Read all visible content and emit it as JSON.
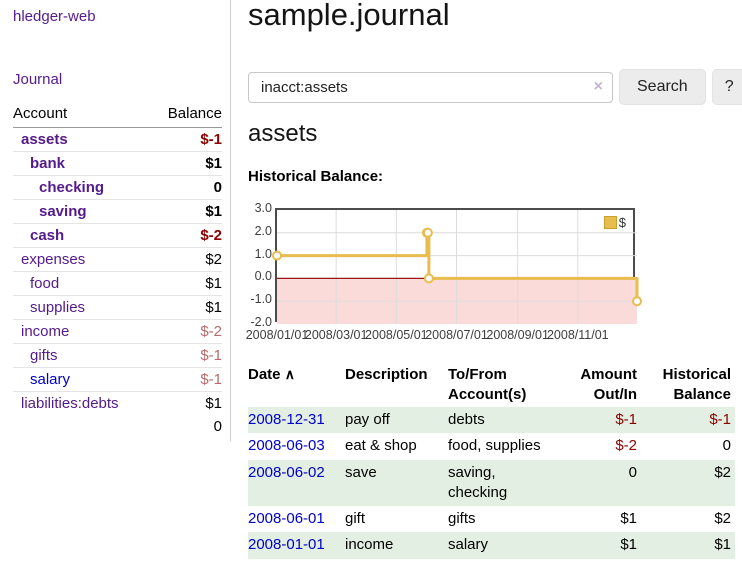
{
  "app": {
    "title": "hledger-web"
  },
  "sidebar": {
    "nav_journal": "Journal",
    "accounts": {
      "col_account": "Account",
      "col_balance": "Balance",
      "rows": [
        {
          "name": "assets",
          "balance": "$-1",
          "indent": 0,
          "bold": true,
          "neg": "strong",
          "link": "visited"
        },
        {
          "name": "bank",
          "balance": "$1",
          "indent": 1,
          "bold": true,
          "neg": null,
          "link": "visited"
        },
        {
          "name": "checking",
          "balance": "0",
          "indent": 2,
          "bold": true,
          "neg": null,
          "link": "visited"
        },
        {
          "name": "saving",
          "balance": "$1",
          "indent": 2,
          "bold": true,
          "neg": null,
          "link": "visited"
        },
        {
          "name": "cash",
          "balance": "$-2",
          "indent": 1,
          "bold": true,
          "neg": "strong",
          "link": "visited"
        },
        {
          "name": "expenses",
          "balance": "$2",
          "indent": 0,
          "bold": false,
          "neg": null,
          "link": "visited"
        },
        {
          "name": "food",
          "balance": "$1",
          "indent": 1,
          "bold": false,
          "neg": null,
          "link": "visited"
        },
        {
          "name": "supplies",
          "balance": "$1",
          "indent": 1,
          "bold": false,
          "neg": null,
          "link": "visited"
        },
        {
          "name": "income",
          "balance": "$-2",
          "indent": 0,
          "bold": false,
          "neg": "dim",
          "link": "visited"
        },
        {
          "name": "gifts",
          "balance": "$-1",
          "indent": 1,
          "bold": false,
          "neg": "dim",
          "link": "visited"
        },
        {
          "name": "salary",
          "balance": "$-1",
          "indent": 1,
          "bold": false,
          "neg": "dim",
          "link": "unvisited"
        },
        {
          "name": "liabilities:debts",
          "balance": "$1",
          "indent": 0,
          "bold": false,
          "neg": null,
          "link": "visited"
        }
      ],
      "total": "0"
    }
  },
  "main": {
    "title": "sample.journal",
    "search": {
      "value": "inacct:assets",
      "clear_icon": "×",
      "search_button": "Search",
      "help_button": "?"
    },
    "account_heading": "assets",
    "chart_title": "Historical Balance:"
  },
  "register": {
    "columns": {
      "date": "Date",
      "sort_icon": "∧",
      "description": "Description",
      "accounts": "To/From\nAccount(s)",
      "amount": "Amount\nOut/In",
      "balance": "Historical\nBalance"
    },
    "rows": [
      {
        "date": "2008-12-31",
        "description": "pay off",
        "accounts": "debts",
        "amount": "$-1",
        "balance": "$-1"
      },
      {
        "date": "2008-06-03",
        "description": "eat & shop",
        "accounts": "food, supplies",
        "amount": "$-2",
        "balance": "0"
      },
      {
        "date": "2008-06-02",
        "description": "save",
        "accounts": "saving, checking",
        "amount": "0",
        "balance": "$2"
      },
      {
        "date": "2008-06-01",
        "description": "gift",
        "accounts": "gifts",
        "amount": "$1",
        "balance": "$2"
      },
      {
        "date": "2008-01-01",
        "description": "income",
        "accounts": "salary",
        "amount": "$1",
        "balance": "$1"
      }
    ]
  },
  "chart_data": {
    "type": "line",
    "step": true,
    "title": "Historical Balance",
    "legend": [
      {
        "label": "$",
        "color": "#e8bd4e",
        "position": "top-right"
      }
    ],
    "series": [
      {
        "name": "$",
        "color": "#e8bd4e",
        "points": [
          [
            "2008-01-01",
            1
          ],
          [
            "2008-06-01",
            2
          ],
          [
            "2008-06-02",
            2
          ],
          [
            "2008-06-03",
            0
          ],
          [
            "2008-12-31",
            -1
          ]
        ]
      }
    ],
    "x_start": "2008-01-01",
    "x_end": "2008-12-31",
    "x_ticks": [
      {
        "label": "2008/01/01",
        "date": "2008-01-01"
      },
      {
        "label": "2008/03/01",
        "date": "2008-03-01"
      },
      {
        "label": "2008/05/01",
        "date": "2008-05-01"
      },
      {
        "label": "2008/07/01",
        "date": "2008-07-01"
      },
      {
        "label": "2008/09/01",
        "date": "2008-09-01"
      },
      {
        "label": "2008/11/01",
        "date": "2008-11-01"
      }
    ],
    "y_ticks": [
      "3.0",
      "2.0",
      "1.0",
      "0.0",
      "-1.0",
      "-2.0"
    ],
    "ylim": [
      -2,
      3
    ],
    "grid": true,
    "negative_region": true
  },
  "colors": {
    "link_visited": "#551a8b",
    "link_unvisited": "#0000cc",
    "negative_strong": "#8b0000",
    "negative_dim": "#b36b6b",
    "row_alt_green": "#e3efe3",
    "chart_line": "#e8bd4e",
    "chart_negative_region": "#fbdbda",
    "chart_zero_line": "#9b1313",
    "chart_gridline": "#dcdcdc"
  }
}
